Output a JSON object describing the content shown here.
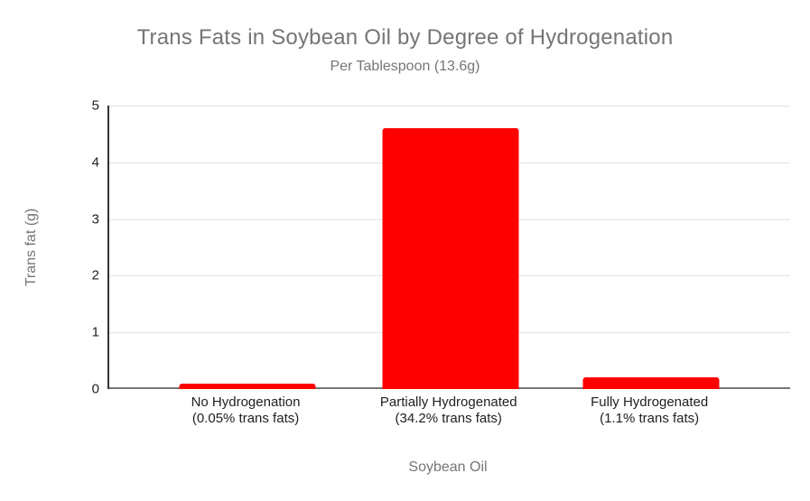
{
  "chart_data": {
    "type": "bar",
    "title": "Trans Fats in Soybean Oil by Degree of Hydrogenation",
    "subtitle": "Per Tablespoon (13.6g)",
    "xlabel": "Soybean Oil",
    "ylabel": "Trans fat (g)",
    "categories": [
      "No Hydrogenation",
      "Partially Hydrogenated",
      "Fully Hydrogenated"
    ],
    "category_sublabels": [
      "(0.05% trans fats)",
      "(34.2% trans fats)",
      "(1.1% trans fats)"
    ],
    "values": [
      0.1,
      4.6,
      0.2
    ],
    "ylim": [
      0,
      5
    ],
    "yticks": [
      0,
      1,
      2,
      3,
      4,
      5
    ],
    "bar_color": "#ff0000",
    "grid": true,
    "legend": "none",
    "background": "#ffffff"
  }
}
